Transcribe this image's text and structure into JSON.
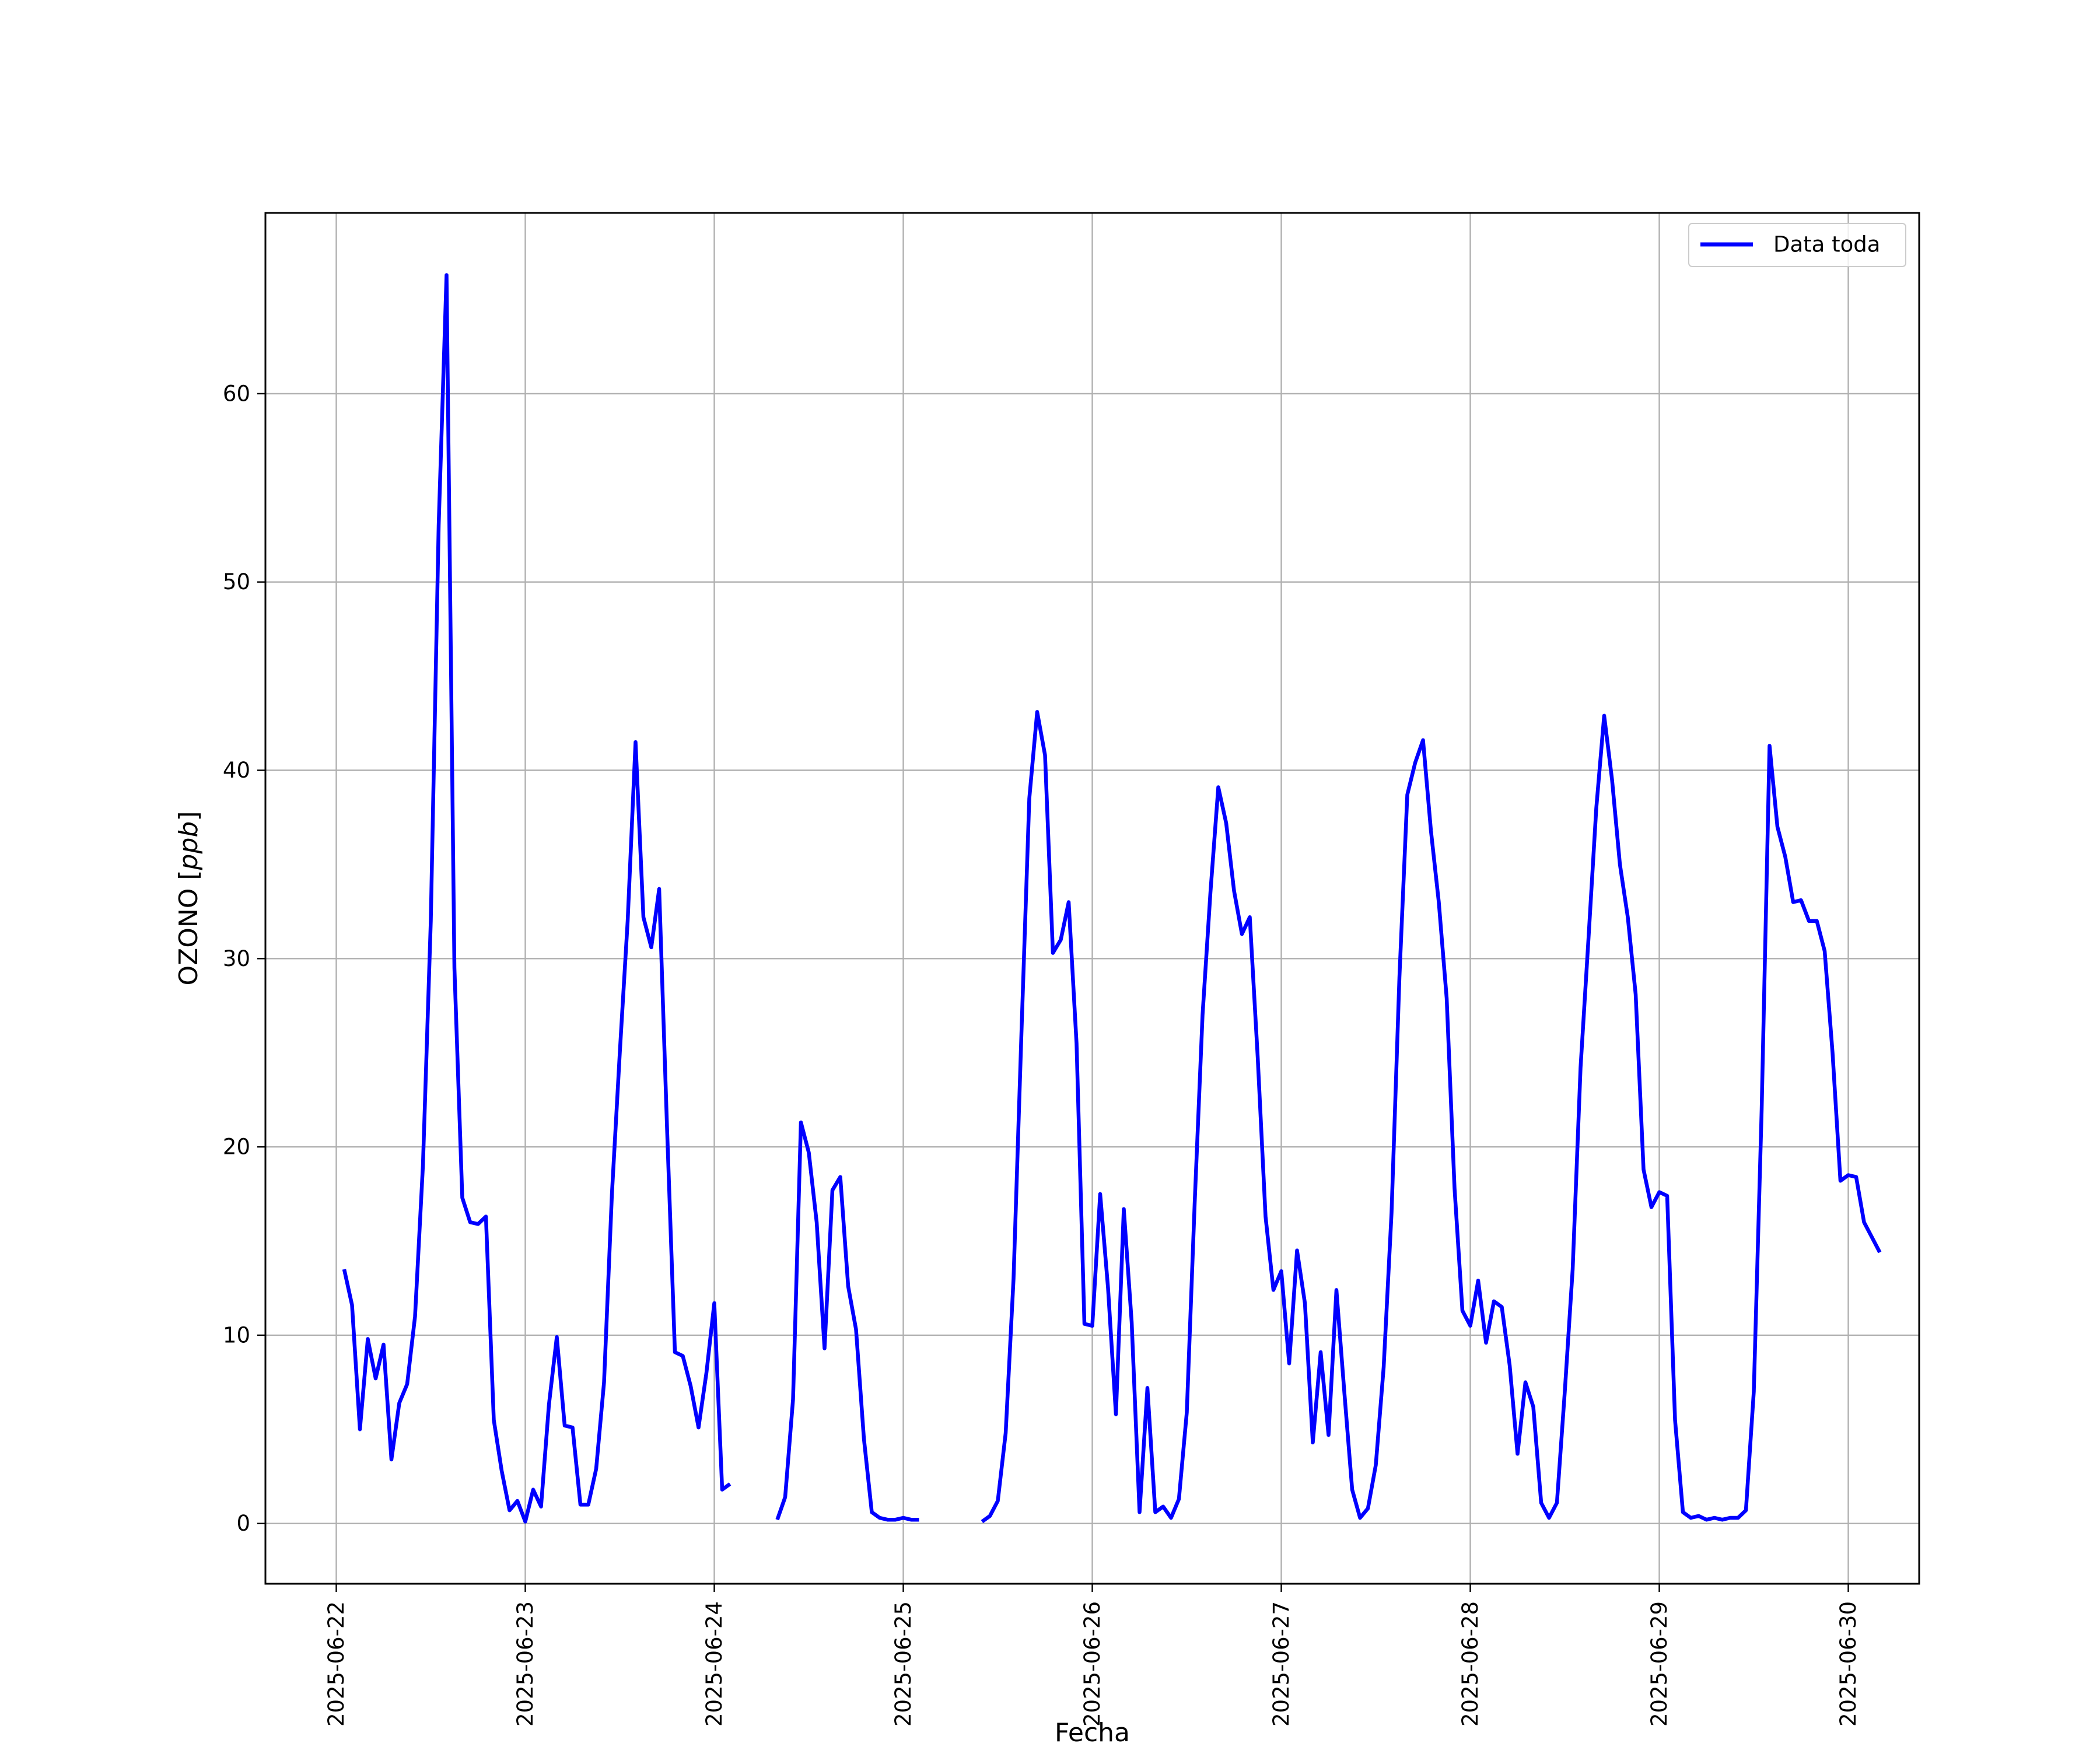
{
  "chart_data": {
    "type": "line",
    "title": "",
    "xlabel": "Fecha",
    "ylabel": "OZONO [ppb]",
    "ylabel_italic_part": "ppb",
    "xlim": [
      "2025-06-21T15:00",
      "2025-06-30T09:00"
    ],
    "ylim": [
      -3.2,
      69.6
    ],
    "x_ticks": [
      "2025-06-22",
      "2025-06-23",
      "2025-06-24",
      "2025-06-25",
      "2025-06-26",
      "2025-06-27",
      "2025-06-28",
      "2025-06-29",
      "2025-06-30"
    ],
    "y_ticks": [
      0,
      10,
      20,
      30,
      40,
      50,
      60
    ],
    "grid": true,
    "legend": {
      "position": "top-right",
      "entries": [
        "Data toda"
      ]
    },
    "series": [
      {
        "name": "Data toda",
        "color": "#0000ff",
        "sampling": "hourly",
        "start": "2025-06-22T01:00",
        "values": [
          13.5,
          11.6,
          5.0,
          9.8,
          7.7,
          9.5,
          3.4,
          6.4,
          7.4,
          11.0,
          19.0,
          32.0,
          53.0,
          66.3,
          29.5,
          17.3,
          16.0,
          15.9,
          16.3,
          5.5,
          2.8,
          0.7,
          1.2,
          0.1,
          1.8,
          0.9,
          6.3,
          9.9,
          5.2,
          5.1,
          1.0,
          1.0,
          2.9,
          7.5,
          17.5,
          25.0,
          32.0,
          41.5,
          32.2,
          30.6,
          33.7,
          21.0,
          9.1,
          8.9,
          7.3,
          5.1,
          8.0,
          11.7,
          1.8,
          2.1,
          null,
          null,
          null,
          null,
          null,
          0.2,
          1.4,
          6.6,
          21.3,
          19.7,
          16.0,
          9.3,
          17.7,
          18.4,
          12.6,
          10.3,
          4.5,
          0.6,
          0.3,
          0.2,
          0.2,
          0.3,
          0.2,
          0.2,
          null,
          null,
          null,
          null,
          null,
          null,
          null,
          0.1,
          0.4,
          1.2,
          4.8,
          13.0,
          26.0,
          38.5,
          43.1,
          40.8,
          30.3,
          31.0,
          33.0,
          25.5,
          10.6,
          10.5,
          17.5,
          12.5,
          5.8,
          16.7,
          10.7,
          0.6,
          7.2,
          0.6,
          0.9,
          0.3,
          1.3,
          5.9,
          17.0,
          27.0,
          33.5,
          39.1,
          37.2,
          33.6,
          31.3,
          32.2,
          24.8,
          16.3,
          12.4,
          13.4,
          8.5,
          14.5,
          11.7,
          4.3,
          9.1,
          4.7,
          12.4,
          7.0,
          1.8,
          0.3,
          0.8,
          3.1,
          8.3,
          16.5,
          29.0,
          38.7,
          40.4,
          41.6,
          36.8,
          33.0,
          27.9,
          17.8,
          11.3,
          10.5,
          12.9,
          9.6,
          11.8,
          11.5,
          8.4,
          3.7,
          7.5,
          6.2,
          1.1,
          0.3,
          1.1,
          7.0,
          13.5,
          24.2,
          31.0,
          38.0,
          42.9,
          39.5,
          35.0,
          32.2,
          28.1,
          18.8,
          16.8,
          17.6,
          17.4,
          5.5,
          0.6,
          0.3,
          0.4,
          0.2,
          0.3,
          0.2,
          0.3,
          0.3,
          0.7,
          7.0,
          22.0,
          41.3,
          37.0,
          35.4,
          33.0,
          33.1,
          32.0,
          32.0,
          30.4,
          25.0,
          18.2,
          18.5,
          18.4,
          16.0,
          15.2,
          14.4
        ]
      }
    ]
  }
}
